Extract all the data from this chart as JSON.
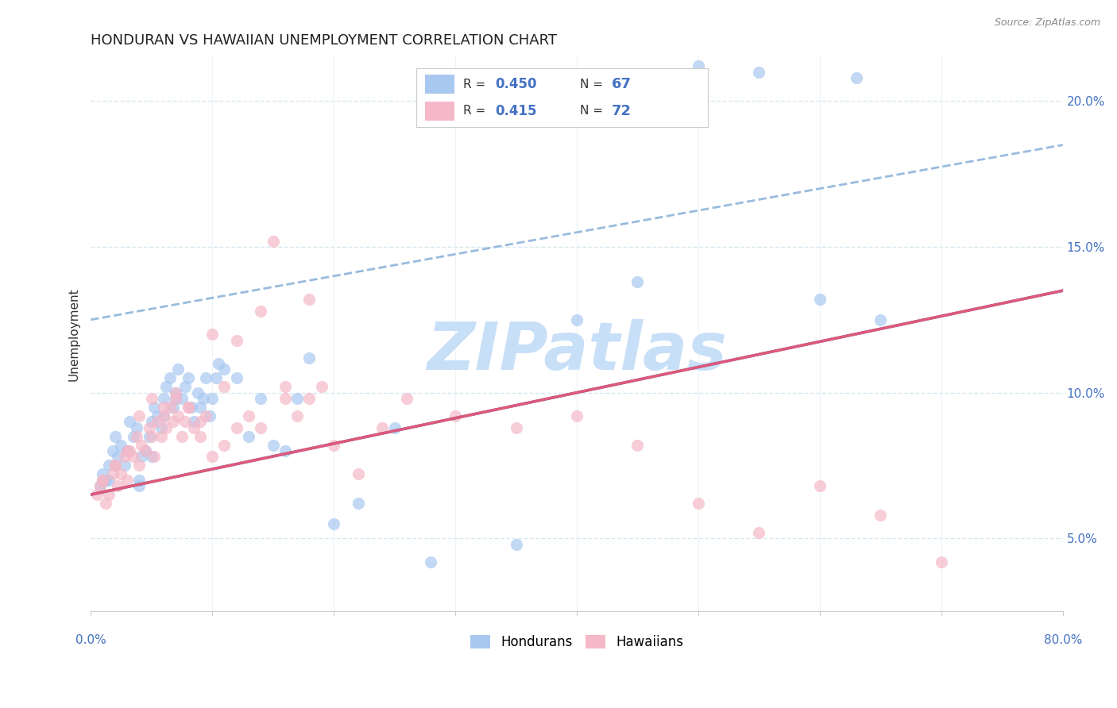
{
  "title": "HONDURAN VS HAWAIIAN UNEMPLOYMENT CORRELATION CHART",
  "source": "Source: ZipAtlas.com",
  "ylabel": "Unemployment",
  "ytick_labels": [
    "5.0%",
    "10.0%",
    "15.0%",
    "20.0%"
  ],
  "ytick_values": [
    5.0,
    10.0,
    15.0,
    20.0
  ],
  "xmin": 0.0,
  "xmax": 80.0,
  "ymin": 2.5,
  "ymax": 21.5,
  "blue_color": "#a8c8f0",
  "pink_color": "#f5b8c8",
  "blue_line_color": "#4472c4",
  "pink_line_color": "#e05878",
  "dashed_line_color": "#99bbdd",
  "watermark_color": "#c8dff8",
  "watermark_text": "ZIPatlas",
  "blue_scatter_x": [
    0.8,
    1.0,
    1.2,
    1.5,
    1.8,
    2.0,
    2.2,
    2.5,
    2.8,
    3.0,
    3.2,
    3.5,
    3.8,
    4.0,
    4.2,
    4.5,
    4.8,
    5.0,
    5.2,
    5.5,
    5.8,
    6.0,
    6.2,
    6.5,
    6.8,
    7.0,
    7.2,
    7.5,
    7.8,
    8.0,
    8.3,
    8.5,
    8.8,
    9.0,
    9.3,
    9.5,
    9.8,
    10.0,
    10.3,
    10.5,
    11.0,
    12.0,
    13.0,
    14.0,
    15.0,
    16.0,
    17.0,
    18.0,
    20.0,
    22.0,
    25.0,
    28.0,
    35.0,
    40.0,
    45.0,
    50.0,
    55.0,
    60.0,
    63.0,
    65.0,
    1.5,
    2.0,
    3.0,
    4.0,
    5.0,
    6.0,
    7.0
  ],
  "blue_scatter_y": [
    6.8,
    7.2,
    7.0,
    7.5,
    8.0,
    8.5,
    7.8,
    8.2,
    7.5,
    8.0,
    9.0,
    8.5,
    8.8,
    7.0,
    7.8,
    8.0,
    8.5,
    9.0,
    9.5,
    9.2,
    8.8,
    9.8,
    10.2,
    10.5,
    9.5,
    10.0,
    10.8,
    9.8,
    10.2,
    10.5,
    9.5,
    9.0,
    10.0,
    9.5,
    9.8,
    10.5,
    9.2,
    9.8,
    10.5,
    11.0,
    10.8,
    10.5,
    8.5,
    9.8,
    8.2,
    8.0,
    9.8,
    11.2,
    5.5,
    6.2,
    8.8,
    4.2,
    4.8,
    12.5,
    13.8,
    21.2,
    21.0,
    13.2,
    20.8,
    12.5,
    7.0,
    7.5,
    8.0,
    6.8,
    7.8,
    9.2,
    9.8
  ],
  "pink_scatter_x": [
    0.5,
    0.8,
    1.0,
    1.2,
    1.5,
    1.8,
    2.0,
    2.2,
    2.5,
    2.8,
    3.0,
    3.2,
    3.5,
    3.8,
    4.0,
    4.2,
    4.5,
    4.8,
    5.0,
    5.2,
    5.5,
    5.8,
    6.0,
    6.2,
    6.5,
    6.8,
    7.0,
    7.2,
    7.5,
    7.8,
    8.0,
    8.5,
    9.0,
    9.5,
    10.0,
    11.0,
    12.0,
    13.0,
    14.0,
    15.0,
    16.0,
    17.0,
    18.0,
    19.0,
    20.0,
    22.0,
    24.0,
    26.0,
    30.0,
    35.0,
    40.0,
    45.0,
    50.0,
    55.0,
    60.0,
    65.0,
    70.0,
    1.0,
    2.0,
    3.0,
    4.0,
    5.0,
    6.0,
    7.0,
    8.0,
    9.0,
    10.0,
    11.0,
    12.0,
    14.0,
    16.0,
    18.0
  ],
  "pink_scatter_y": [
    6.5,
    6.8,
    7.0,
    6.2,
    6.5,
    7.2,
    7.5,
    6.8,
    7.2,
    7.8,
    7.0,
    8.0,
    7.8,
    8.5,
    7.5,
    8.2,
    8.0,
    8.8,
    8.5,
    7.8,
    9.0,
    8.5,
    9.2,
    8.8,
    9.5,
    9.0,
    9.8,
    9.2,
    8.5,
    9.0,
    9.5,
    8.8,
    8.5,
    9.2,
    7.8,
    8.2,
    8.8,
    9.2,
    8.8,
    15.2,
    9.8,
    9.2,
    9.8,
    10.2,
    8.2,
    7.2,
    8.8,
    9.8,
    9.2,
    8.8,
    9.2,
    8.2,
    6.2,
    5.2,
    6.8,
    5.8,
    4.2,
    7.0,
    7.5,
    8.0,
    9.2,
    9.8,
    9.5,
    10.0,
    9.5,
    9.0,
    12.0,
    10.2,
    11.8,
    12.8,
    10.2,
    13.2
  ],
  "blue_trend_x": [
    0.0,
    80.0
  ],
  "blue_trend_y": [
    6.5,
    13.5
  ],
  "pink_trend_x": [
    0.0,
    80.0
  ],
  "pink_trend_y": [
    6.5,
    13.5
  ],
  "dashed_trend_x": [
    0.0,
    80.0
  ],
  "dashed_trend_y": [
    12.5,
    18.5
  ],
  "grid_color": "#d8e8f0",
  "grid_linestyle": "--",
  "bg_color": "#ffffff",
  "title_fontsize": 13,
  "axis_label_fontsize": 11,
  "tick_fontsize": 11
}
